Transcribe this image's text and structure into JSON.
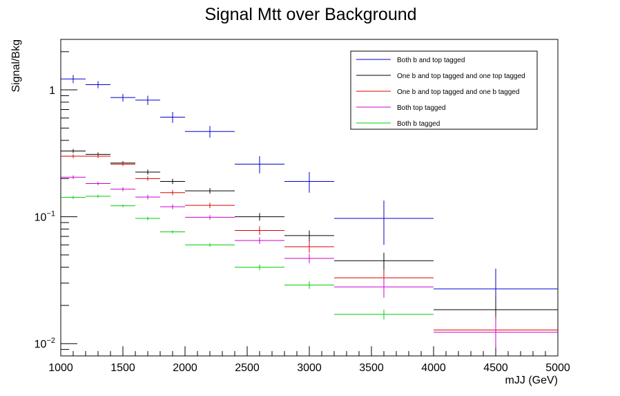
{
  "chart_data": {
    "type": "scatter",
    "title": "Signal Mtt over Background",
    "xlabel": "mJJ (GeV)",
    "ylabel": "Signal/Bkg",
    "xlim": [
      1000,
      5000
    ],
    "ylim": [
      0.008,
      2.5
    ],
    "yscale": "log",
    "x_ticks": [
      1000,
      1500,
      2000,
      2500,
      3000,
      3500,
      4000,
      4500,
      5000
    ],
    "y_ticks": [
      {
        "value": 0.01,
        "base": "10",
        "exp": "−2"
      },
      {
        "value": 0.1,
        "base": "10",
        "exp": "−1"
      },
      {
        "value": 1,
        "base": "1",
        "exp": ""
      }
    ],
    "legend_position": "top-right",
    "bins": [
      [
        1000,
        1200
      ],
      [
        1200,
        1400
      ],
      [
        1400,
        1600
      ],
      [
        1600,
        1800
      ],
      [
        1800,
        2000
      ],
      [
        2000,
        2400
      ],
      [
        2400,
        2800
      ],
      [
        2800,
        3200
      ],
      [
        3200,
        4000
      ],
      [
        4000,
        5000
      ]
    ],
    "series": [
      {
        "name": "Both b and top tagged",
        "color": "#0000cc",
        "values": [
          1.22,
          1.1,
          0.87,
          0.83,
          0.61,
          0.47,
          0.26,
          0.19,
          0.097,
          0.027
        ],
        "errors": [
          0.09,
          0.07,
          0.06,
          0.07,
          0.06,
          0.05,
          0.04,
          0.035,
          0.037,
          0.012
        ]
      },
      {
        "name": "One b and top tagged and one top tagged",
        "color": "#000000",
        "values": [
          0.33,
          0.31,
          0.265,
          0.225,
          0.19,
          0.16,
          0.1,
          0.071,
          0.045,
          0.0185
        ],
        "errors": [
          0.012,
          0.011,
          0.01,
          0.01,
          0.009,
          0.008,
          0.007,
          0.007,
          0.007,
          0.005
        ]
      },
      {
        "name": "One b and top tagged and one b tagged",
        "color": "#dd0000",
        "values": [
          0.3,
          0.3,
          0.26,
          0.2,
          0.155,
          0.123,
          0.078,
          0.058,
          0.033,
          0.0128
        ],
        "errors": [
          0.01,
          0.01,
          0.009,
          0.008,
          0.007,
          0.006,
          0.006,
          0.006,
          0.005,
          0.0035
        ]
      },
      {
        "name": "Both top tagged",
        "color": "#cc00cc",
        "values": [
          0.205,
          0.183,
          0.165,
          0.143,
          0.12,
          0.099,
          0.065,
          0.047,
          0.028,
          0.0123
        ],
        "errors": [
          0.007,
          0.006,
          0.006,
          0.006,
          0.005,
          0.004,
          0.004,
          0.004,
          0.005,
          0.003
        ]
      },
      {
        "name": "Both b tagged",
        "color": "#00cc00",
        "values": [
          0.142,
          0.145,
          0.122,
          0.097,
          0.076,
          0.06,
          0.04,
          0.029,
          0.017,
          null
        ],
        "errors": [
          0.004,
          0.004,
          0.003,
          0.003,
          0.002,
          0.002,
          0.002,
          0.002,
          0.0015,
          null
        ]
      }
    ]
  }
}
